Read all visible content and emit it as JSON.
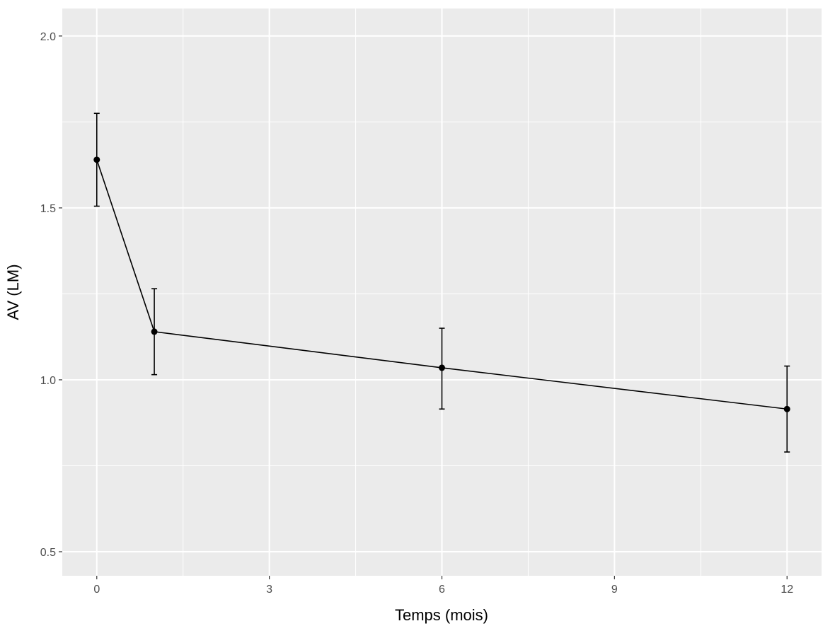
{
  "chart_data": {
    "type": "line",
    "title": "",
    "xlabel": "Temps (mois)",
    "ylabel": "AV (LM)",
    "xlim": [
      -0.6,
      12.6
    ],
    "ylim": [
      0.43,
      2.08
    ],
    "x_ticks": [
      0,
      3,
      6,
      9,
      12
    ],
    "x_tick_labels": [
      "0",
      "3",
      "6",
      "9",
      "12"
    ],
    "y_ticks": [
      0.5,
      1.0,
      1.5,
      2.0
    ],
    "y_tick_labels": [
      "0.5",
      "1.0",
      "1.5",
      "2.0"
    ],
    "grid": true,
    "background": "#ebebeb",
    "grid_color": "#ffffff",
    "line_color": "#000000",
    "series": [
      {
        "x": [
          0,
          1,
          6,
          12
        ],
        "y": [
          1.64,
          1.14,
          1.035,
          0.915
        ],
        "error_low": [
          1.505,
          1.015,
          0.915,
          0.79
        ],
        "error_high": [
          1.775,
          1.265,
          1.15,
          1.04
        ]
      }
    ]
  }
}
